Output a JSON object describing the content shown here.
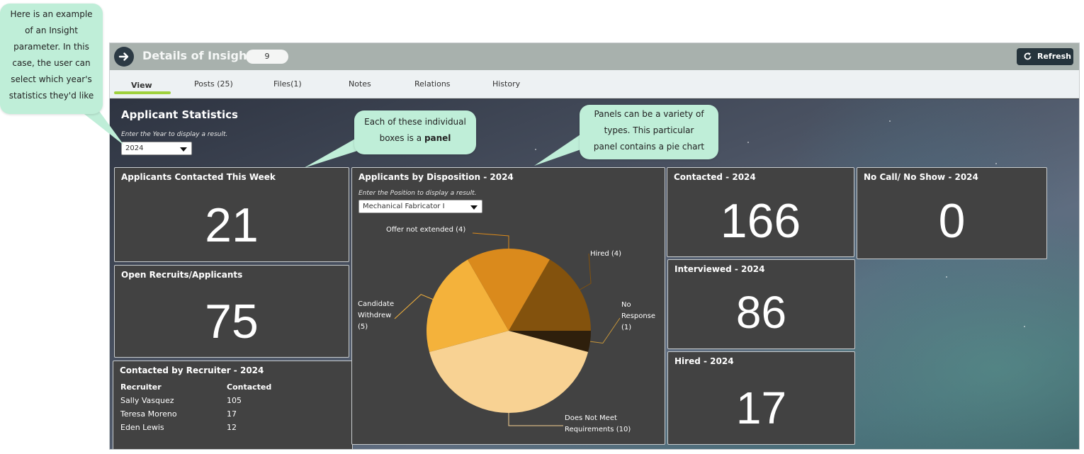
{
  "header": {
    "title": "Details of Insight",
    "badge": "9",
    "refresh_label": "Refresh"
  },
  "tabs": [
    {
      "label": "View",
      "active": true
    },
    {
      "label": "Posts (25)"
    },
    {
      "label": "Files(1)"
    },
    {
      "label": "Notes"
    },
    {
      "label": "Relations"
    },
    {
      "label": "History"
    }
  ],
  "section": {
    "title": "Applicant Statistics",
    "year_prompt": "Enter the Year to display a result.",
    "year_value": "2024"
  },
  "panels": {
    "week": {
      "title": "Applicants Contacted This Week",
      "value": "21"
    },
    "open": {
      "title": "Open Recruits/Applicants",
      "value": "75"
    },
    "contacted": {
      "title": "Contacted - 2024",
      "value": "166"
    },
    "interviewed": {
      "title": "Interviewed - 2024",
      "value": "86"
    },
    "hired": {
      "title": "Hired - 2024",
      "value": "17"
    },
    "noshow": {
      "title": "No Call/ No Show - 2024",
      "value": "0"
    },
    "recruiter": {
      "title": "Contacted by Recruiter - 2024",
      "columns": [
        "Recruiter",
        "Contacted"
      ],
      "rows": [
        [
          "Sally Vasquez",
          "105"
        ],
        [
          "Teresa Moreno",
          "17"
        ],
        [
          "Eden Lewis",
          "12"
        ]
      ]
    },
    "disposition": {
      "title": "Applicants by Disposition - 2024",
      "position_prompt": "Enter the Position to display a result.",
      "position_value": "Mechanical Fabricator I"
    }
  },
  "chart_data": {
    "type": "pie",
    "title": "Applicants by Disposition - 2024",
    "slices": [
      {
        "label": "No Response (1)",
        "value": 1,
        "color": "#2e1f0c"
      },
      {
        "label": "Does Not Meet Requirements (10)",
        "value": 10,
        "color": "#f8d293"
      },
      {
        "label": "Candidate Withdrew (5)",
        "value": 5,
        "color": "#f4b23b"
      },
      {
        "label": "Offer not extended (4)",
        "value": 4,
        "color": "#da8a1c"
      },
      {
        "label": "Hired (4)",
        "value": 4,
        "color": "#83520d"
      }
    ]
  },
  "callouts": {
    "param": [
      "Here is an example",
      "of an Insight",
      "parameter. In this",
      "case, the user can",
      "select which year's",
      "statistics they'd like"
    ],
    "panel": {
      "line1": "Each of these individual",
      "line2_prefix": "boxes is a",
      "line2_bold": "panel"
    },
    "pie": [
      "Panels can be a variety of",
      "types. This particular",
      "panel contains a pie chart"
    ]
  },
  "colors": {
    "titlebar": "#a8b1ad",
    "tab_accent": "#9fd13c",
    "panel_bg": "#424242",
    "callout_bg": "#bfeed8"
  }
}
